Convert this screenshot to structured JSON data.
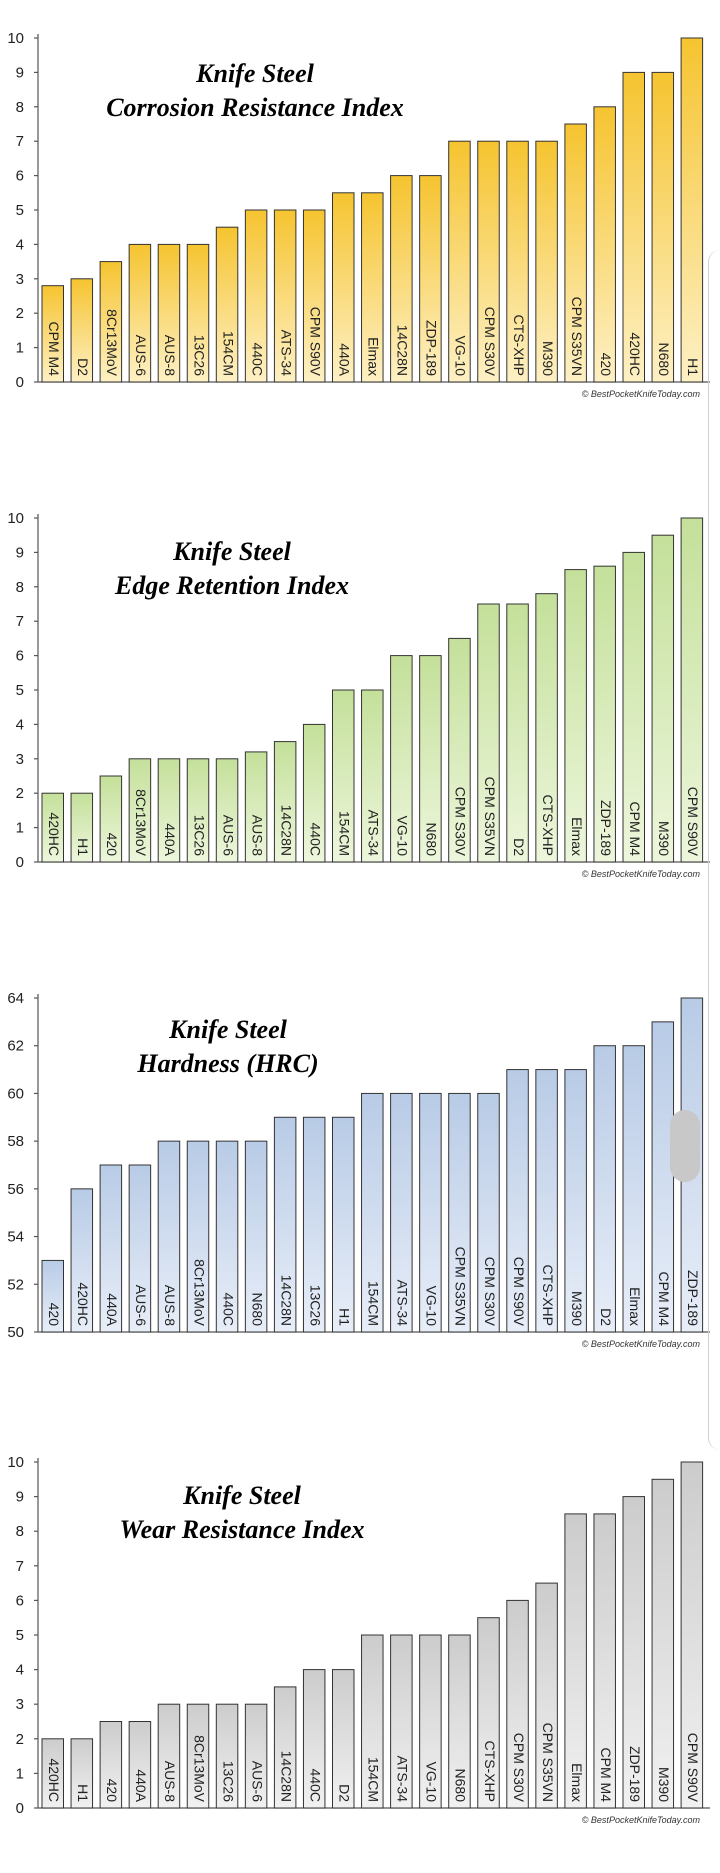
{
  "credit": "© BestPocketKnifeToday.com",
  "chart_data": [
    {
      "type": "bar",
      "title": [
        "Knife Steel",
        "Corrosion Resistance Index"
      ],
      "color": {
        "light": "#fdf0c4",
        "dark": "#f6c430"
      },
      "ylim": [
        0,
        10
      ],
      "yticks": [
        0,
        1,
        2,
        3,
        4,
        5,
        6,
        7,
        8,
        9,
        10
      ],
      "categories": [
        "CPM M4",
        "D2",
        "8Cr13MoV",
        "AUS-6",
        "AUS-8",
        "13C26",
        "154CM",
        "440C",
        "ATS-34",
        "CPM S90V",
        "440A",
        "Elmax",
        "14C28N",
        "ZDP-189",
        "VG-10",
        "CPM S30V",
        "CTS-XHP",
        "M390",
        "CPM S35VN",
        "420",
        "420HC",
        "N680",
        "H1"
      ],
      "values": [
        2.8,
        3,
        3.5,
        4,
        4,
        4,
        4.5,
        5,
        5,
        5,
        5.5,
        5.5,
        6,
        6,
        7,
        7,
        7,
        7,
        7.5,
        8,
        9,
        9,
        10
      ]
    },
    {
      "type": "bar",
      "title": [
        "Knife Steel",
        "Edge Retention Index"
      ],
      "color": {
        "light": "#edf6dc",
        "dark": "#c4e09a"
      },
      "ylim": [
        0,
        10
      ],
      "yticks": [
        0,
        1,
        2,
        3,
        4,
        5,
        6,
        7,
        8,
        9,
        10
      ],
      "categories": [
        "420HC",
        "H1",
        "420",
        "8Cr13MoV",
        "440A",
        "13C26",
        "AUS-6",
        "AUS-8",
        "14C28N",
        "440C",
        "154CM",
        "ATS-34",
        "VG-10",
        "N680",
        "CPM S30V",
        "CPM S35VN",
        "D2",
        "CTS-XHP",
        "Elmax",
        "ZDP-189",
        "CPM M4",
        "M390",
        "CPM S90V"
      ],
      "values": [
        2,
        2,
        2.5,
        3,
        3,
        3,
        3,
        3.2,
        3.5,
        4,
        5,
        5,
        6,
        6,
        6.5,
        7.5,
        7.5,
        7.8,
        8.5,
        8.6,
        9,
        9.5,
        10
      ]
    },
    {
      "type": "bar",
      "title": [
        "Knife Steel",
        "Hardness (HRC)"
      ],
      "color": {
        "light": "#e8eef8",
        "dark": "#b8cbe6"
      },
      "ylim": [
        50,
        64
      ],
      "yticks": [
        50,
        52,
        54,
        56,
        58,
        60,
        62,
        64
      ],
      "categories": [
        "420",
        "420HC",
        "440A",
        "AUS-6",
        "AUS-8",
        "8Cr13MoV",
        "440C",
        "N680",
        "14C28N",
        "13C26",
        "H1",
        "154CM",
        "ATS-34",
        "VG-10",
        "CPM S35VN",
        "CPM S30V",
        "CPM S90V",
        "CTS-XHP",
        "M390",
        "D2",
        "Elmax",
        "CPM M4",
        "ZDP-189"
      ],
      "values": [
        53,
        56,
        57,
        57,
        58,
        58,
        58,
        58,
        59,
        59,
        59,
        60,
        60,
        60,
        60,
        60,
        61,
        61,
        61,
        62,
        62,
        63,
        64
      ]
    },
    {
      "type": "bar",
      "title": [
        "Knife Steel",
        "Wear Resistance Index"
      ],
      "color": {
        "light": "#f1f1f1",
        "dark": "#cccccc"
      },
      "ylim": [
        0,
        10
      ],
      "yticks": [
        0,
        1,
        2,
        3,
        4,
        5,
        6,
        7,
        8,
        9,
        10
      ],
      "categories": [
        "420HC",
        "H1",
        "420",
        "440A",
        "AUS-8",
        "8Cr13MoV",
        "13C26",
        "AUS-6",
        "14C28N",
        "440C",
        "D2",
        "154CM",
        "ATS-34",
        "VG-10",
        "N680",
        "CTS-XHP",
        "CPM S30V",
        "CPM S35VN",
        "Elmax",
        "CPM M4",
        "ZDP-189",
        "M390",
        "CPM S90V"
      ],
      "values": [
        2,
        2,
        2.5,
        2.5,
        3,
        3,
        3,
        3,
        3.5,
        4,
        4,
        5,
        5,
        5,
        5,
        5.5,
        6,
        6.5,
        8.5,
        8.5,
        9,
        9.5,
        10
      ]
    }
  ]
}
